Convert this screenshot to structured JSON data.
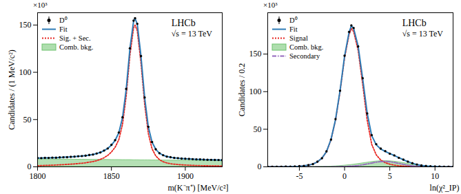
{
  "chart_data": [
    {
      "type": "line",
      "xlabel": "m(K⁻π⁺) [MeV/c²]",
      "ylabel": "Candidates / (1 MeV/c²)",
      "annotations": [
        "×10³",
        "LHCb",
        "√s = 13 TeV"
      ],
      "legend": "top-left",
      "xlim": [
        1800,
        1925
      ],
      "xticks": [
        1800,
        1850,
        1900
      ],
      "ylim": [
        0,
        163
      ],
      "yticks": [
        0,
        50,
        100,
        150
      ],
      "x": [
        1800,
        1802.5,
        1805,
        1807.5,
        1810,
        1812.5,
        1815,
        1817.5,
        1820,
        1822.5,
        1825,
        1827.5,
        1830,
        1832.5,
        1835,
        1837.5,
        1840,
        1842.5,
        1845,
        1847.5,
        1850,
        1852.5,
        1855,
        1857.5,
        1860,
        1862.5,
        1865,
        1866,
        1867.5,
        1870,
        1872.5,
        1875,
        1877.5,
        1880,
        1882.5,
        1885,
        1887.5,
        1890,
        1892.5,
        1895,
        1897.5,
        1900,
        1902.5,
        1905,
        1907.5,
        1910,
        1912.5,
        1915,
        1917.5,
        1920,
        1922.5,
        1925
      ],
      "series": [
        {
          "name": "Comb. bkg.",
          "type": "area",
          "color": "#6cc26c",
          "values": [
            8.0,
            8.0,
            7.9,
            7.9,
            7.9,
            7.8,
            7.8,
            7.8,
            7.7,
            7.7,
            7.7,
            7.6,
            7.6,
            7.6,
            7.5,
            7.5,
            7.5,
            7.4,
            7.4,
            7.4,
            7.3,
            7.3,
            7.3,
            7.2,
            7.2,
            7.2,
            7.1,
            7.1,
            7.1,
            7.0,
            7.0,
            7.0,
            6.9,
            6.9,
            6.9,
            6.8,
            6.8,
            6.8,
            6.7,
            6.7,
            6.7,
            6.6,
            6.6,
            6.6,
            6.5,
            6.5,
            6.5,
            6.4,
            6.4,
            6.4,
            6.3,
            6.3
          ]
        },
        {
          "name": "Sig. + Sec.",
          "type": "line",
          "line_style": "dotted",
          "color": "#e8231e",
          "values": [
            1.2,
            1.3,
            1.5,
            1.6,
            1.7,
            1.9,
            2.1,
            2.3,
            2.6,
            2.8,
            3.1,
            3.5,
            3.8,
            4.3,
            4.9,
            5.6,
            6.5,
            7.9,
            9.6,
            12.1,
            15.7,
            20.7,
            28.7,
            44.8,
            74.8,
            117.8,
            146.9,
            149.9,
            143.9,
            110,
            66,
            35,
            19.1,
            11.6,
            7.6,
            5.4,
            4.1,
            3.3,
            2.8,
            2.4,
            2.1,
            1.9,
            1.7,
            1.5,
            1.4,
            1.3,
            1.1,
            1.1,
            1.0,
            0.9,
            0.9,
            0.8
          ]
        },
        {
          "name": "Fit",
          "type": "line",
          "line_style": "solid",
          "color": "#2c7bb6",
          "values": [
            9.2,
            9.3,
            9.4,
            9.5,
            9.6,
            9.7,
            9.9,
            10.1,
            10.3,
            10.5,
            10.8,
            11.1,
            11.4,
            11.9,
            12.4,
            13.1,
            14.0,
            15.3,
            17.0,
            19.5,
            23,
            28,
            36,
            52,
            82,
            125,
            154,
            157,
            151,
            117,
            73,
            42,
            26,
            18.5,
            14.5,
            12.2,
            10.9,
            10.1,
            9.5,
            9.1,
            8.8,
            8.5,
            8.3,
            8.1,
            7.9,
            7.8,
            7.6,
            7.5,
            7.4,
            7.3,
            7.2,
            7.1
          ]
        },
        {
          "name": "D⁰",
          "type": "scatter",
          "marker": "circle",
          "color": "#000000",
          "values": [
            9.3,
            9.2,
            9.5,
            9.4,
            9.7,
            9.6,
            10.0,
            10.1,
            10.2,
            10.6,
            10.8,
            11.2,
            11.4,
            11.8,
            12.5,
            13.0,
            14.1,
            15.2,
            17.2,
            19.4,
            23.3,
            28.2,
            36.3,
            52.4,
            82.5,
            125.4,
            154.6,
            157.2,
            151.3,
            117.2,
            73.4,
            42.3,
            26.2,
            18.6,
            14.4,
            12.3,
            10.8,
            10.2,
            9.5,
            9.2,
            8.7,
            8.5,
            8.4,
            8.1,
            7.9,
            7.8,
            7.6,
            7.5,
            7.4,
            7.3,
            7.2,
            7.1
          ]
        }
      ],
      "legend_order": [
        "D⁰",
        "Fit",
        "Sig. + Sec.",
        "Comb. bkg."
      ]
    },
    {
      "type": "line",
      "xlabel": "ln(χ²_IP)",
      "ylabel": "Candidates / 0.2",
      "annotations": [
        "×10³",
        "LHCb",
        "√s = 13 TeV"
      ],
      "legend": "top-left",
      "xlim": [
        -8.5,
        12
      ],
      "xticks": [
        -5,
        0,
        5,
        10
      ],
      "ylim": [
        0,
        205
      ],
      "yticks": [
        0,
        50,
        100,
        150
      ],
      "x": [
        -8.5,
        -8,
        -7.5,
        -7,
        -6.5,
        -6,
        -5.5,
        -5,
        -4.5,
        -4,
        -3.5,
        -3,
        -2.5,
        -2,
        -1.5,
        -1,
        -0.5,
        0,
        0.5,
        0.75,
        1,
        1.5,
        2,
        2.5,
        3,
        3.5,
        4,
        4.5,
        5,
        5.5,
        6,
        6.5,
        7,
        7.5,
        8,
        8.5,
        9,
        9.5,
        10,
        10.5,
        11,
        11.5,
        12
      ],
      "series": [
        {
          "name": "Comb. bkg.",
          "type": "area",
          "color": "#6cc26c",
          "values": [
            0,
            0,
            0,
            0,
            0,
            0,
            0,
            0,
            0,
            0,
            0,
            0.1,
            0.2,
            0.3,
            0.5,
            0.8,
            1.2,
            1.7,
            2.3,
            2.6,
            3.0,
            3.8,
            4.7,
            5.6,
            6.5,
            7.2,
            7.6,
            7.7,
            7.5,
            7.0,
            6.2,
            5.2,
            4.1,
            3.0,
            2.0,
            1.3,
            0.8,
            0.5,
            0.3,
            0.2,
            0.1,
            0,
            0
          ]
        },
        {
          "name": "Signal",
          "type": "line",
          "line_style": "dotted",
          "color": "#e8231e",
          "values": [
            0,
            0,
            0,
            0.1,
            0.2,
            0.3,
            0.5,
            0.8,
            1.3,
            2.2,
            3.8,
            6.5,
            11.5,
            20,
            36,
            62,
            100,
            145,
            176,
            184,
            180,
            155,
            110,
            62,
            30,
            16,
            9,
            5.5,
            3.5,
            2.2,
            1.4,
            0.9,
            0.6,
            0.4,
            0.3,
            0.2,
            0.1,
            0.1,
            0,
            0,
            0,
            0,
            0
          ]
        },
        {
          "name": "Secondary",
          "type": "line",
          "line_style": "dashdot",
          "color": "#9467bd",
          "values": [
            0,
            0,
            0,
            0,
            0,
            0,
            0,
            0,
            0,
            0,
            0,
            0,
            0,
            0,
            0.1,
            0.2,
            0.3,
            0.5,
            0.8,
            1.0,
            1.2,
            1.8,
            2.7,
            3.8,
            5.0,
            6.2,
            7.0,
            7.2,
            6.8,
            5.8,
            4.6,
            3.3,
            2.2,
            1.3,
            0.7,
            0.4,
            0.2,
            0.1,
            0.1,
            0,
            0,
            0,
            0
          ]
        },
        {
          "name": "Fit",
          "type": "line",
          "line_style": "solid",
          "color": "#2c7bb6",
          "values": [
            0,
            0,
            0,
            0.1,
            0.2,
            0.3,
            0.5,
            0.8,
            1.3,
            2.2,
            3.8,
            6.6,
            11.7,
            20.3,
            36.6,
            63.0,
            101.5,
            147.2,
            179.1,
            187.6,
            184.2,
            160.6,
            117.4,
            71.4,
            41.5,
            29.4,
            23.6,
            20.4,
            17.8,
            15.0,
            12.2,
            9.4,
            6.9,
            4.7,
            3.0,
            1.9,
            1.1,
            0.7,
            0.4,
            0.2,
            0.1,
            0,
            0
          ]
        },
        {
          "name": "D⁰",
          "type": "scatter",
          "marker": "circle",
          "color": "#000000",
          "values": [
            0,
            0,
            0.1,
            0.1,
            0.2,
            0.3,
            0.5,
            0.9,
            1.3,
            2.3,
            3.7,
            6.8,
            11.5,
            20.6,
            36.2,
            63.5,
            101.2,
            147.8,
            179.5,
            188.1,
            184.6,
            160.1,
            117.9,
            71.0,
            42.2,
            30.1,
            24.3,
            20.9,
            17.5,
            15.2,
            12.0,
            9.6,
            6.8,
            4.8,
            3.1,
            1.8,
            1.2,
            0.7,
            0.4,
            0.2,
            0.1,
            0.1,
            0
          ]
        }
      ],
      "legend_order": [
        "D⁰",
        "Fit",
        "Signal",
        "Comb. bkg.",
        "Secondary"
      ]
    }
  ]
}
